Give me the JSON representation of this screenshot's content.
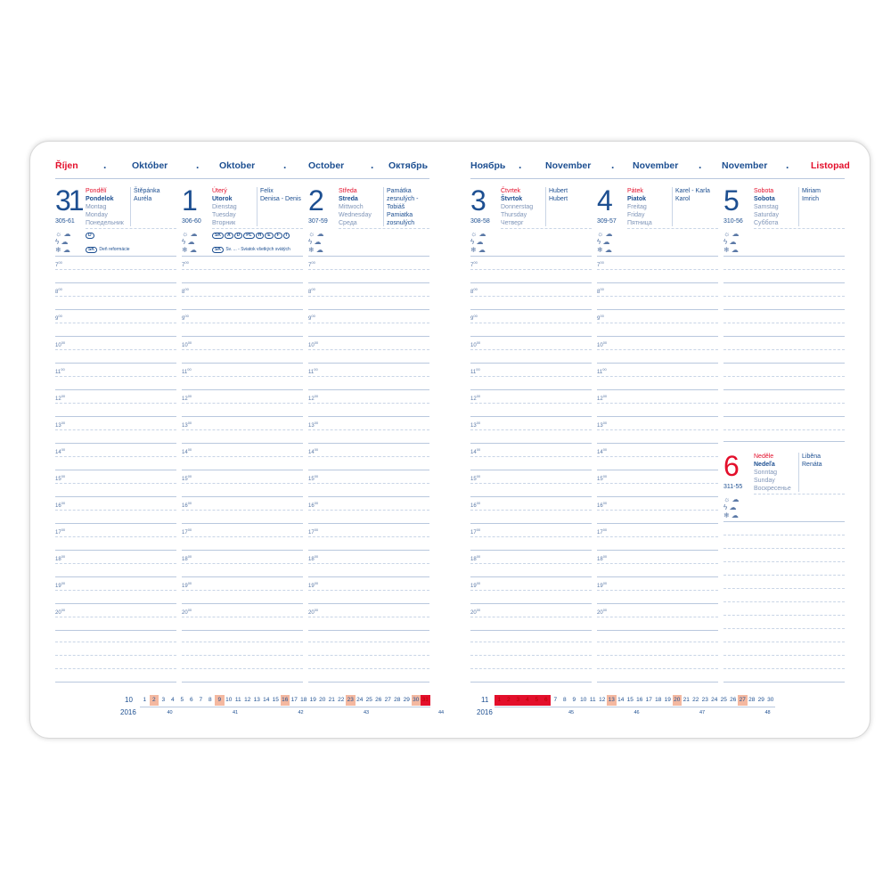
{
  "left_header": [
    "Říjen",
    "Október",
    "Oktober",
    "October",
    "Октябрь"
  ],
  "right_header": [
    "Ноябрь",
    "November",
    "November",
    "November",
    "Listopad"
  ],
  "colors": {
    "blue": "#1d4f91",
    "red": "#e30f2b",
    "weekend": "#f4b8a0",
    "today": "#e30f2b",
    "line": "#b9c8de"
  },
  "weather_icons": [
    "sun-icon",
    "sun-cloud-icon",
    "lightning-icon",
    "rain-cloud-icon",
    "snowflake-icon",
    "snow-cloud-icon"
  ],
  "days": [
    {
      "num": "31",
      "code": "305-61",
      "names": [
        "Pondělí",
        "Pondelok",
        "Montag",
        "Monday",
        "Понедельник"
      ],
      "nameday": [
        "Štěpánka",
        "Auréla"
      ],
      "badges": [
        "D"
      ],
      "holiday_badge": "SK",
      "holiday": "Deň reformácie"
    },
    {
      "num": "1",
      "code": "306-60",
      "names": [
        "Úterý",
        "Utorok",
        "Dienstag",
        "Tuesday",
        "Вторник"
      ],
      "nameday": [
        "Felix",
        "Denisa - Denis"
      ],
      "badges": [
        "SK",
        "A",
        "D",
        "PL",
        "H",
        "E",
        "F",
        "I"
      ],
      "holiday_badge": "SK",
      "holiday": "Sv. ... - Sviatok všetkých svätých"
    },
    {
      "num": "2",
      "code": "307-59",
      "names": [
        "Středa",
        "Streda",
        "Mittwoch",
        "Wednesday",
        "Среда"
      ],
      "nameday": [
        "Památka zesnulých - Tobiáš",
        "Pamiatka zosnulých"
      ]
    },
    {
      "num": "3",
      "code": "308-58",
      "names": [
        "Čtvrtek",
        "Štvrtok",
        "Donnerstag",
        "Thursday",
        "Четверг"
      ],
      "nameday": [
        "Hubert",
        "Hubert"
      ]
    },
    {
      "num": "4",
      "code": "309-57",
      "names": [
        "Pátek",
        "Piatok",
        "Freitag",
        "Friday",
        "Пятница"
      ],
      "nameday": [
        "Karel - Karla",
        "Karol"
      ]
    },
    {
      "num": "5",
      "code": "310-56",
      "names": [
        "Sobota",
        "Sobota",
        "Samstag",
        "Saturday",
        "Суббота"
      ],
      "nameday": [
        "Miriam",
        "Imrich"
      ]
    },
    {
      "num": "6",
      "code": "311-55",
      "names": [
        "Neděle",
        "Nedeľa",
        "Sonntag",
        "Sunday",
        "Воскресенье"
      ],
      "nameday": [
        "Liběna",
        "Renáta"
      ]
    }
  ],
  "hours": [
    "7",
    "8",
    "9",
    "10",
    "11",
    "12",
    "13",
    "14",
    "15",
    "16",
    "17",
    "18",
    "19",
    "20"
  ],
  "hour_suffix": "00",
  "mini_calendars": [
    {
      "month": "10",
      "year": "2016",
      "days": 31,
      "weekend": [
        2,
        9,
        16,
        23,
        30
      ],
      "current": [
        31
      ],
      "weeks": [
        {
          "n": "40",
          "day": 2
        },
        {
          "n": "41",
          "day": 9
        },
        {
          "n": "42",
          "day": 16
        },
        {
          "n": "43",
          "day": 23
        },
        {
          "n": "44",
          "day": 31
        }
      ]
    },
    {
      "month": "11",
      "year": "2016",
      "days": 30,
      "weekend": [
        13,
        20,
        27
      ],
      "current": [
        1,
        2,
        3,
        4,
        5,
        6
      ],
      "weeks": [
        {
          "n": "45",
          "day": 7
        },
        {
          "n": "46",
          "day": 14
        },
        {
          "n": "47",
          "day": 21
        },
        {
          "n": "48",
          "day": 28
        }
      ]
    }
  ]
}
